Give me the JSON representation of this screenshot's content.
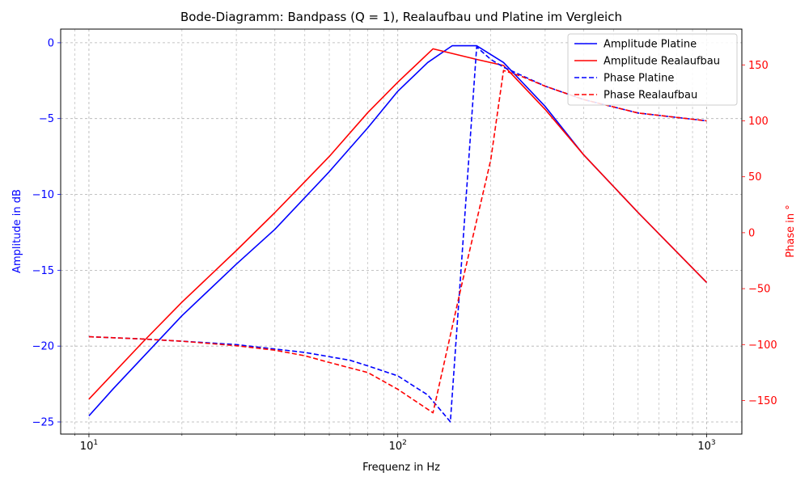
{
  "chart_data": {
    "type": "line",
    "title": "Bode-Diagramm: Bandpass (Q = 1), Realaufbau und Platine im Vergleich",
    "xlabel": "Frequenz in Hz",
    "ylabel_left": "Amplitude in dB",
    "ylabel_right": "Phase in °",
    "x_scale": "log",
    "xlim": [
      8.1,
      1300
    ],
    "ylim_left": [
      -25.8,
      0.9
    ],
    "ylim_right": [
      -180,
      182
    ],
    "x_ticks": [
      10,
      100,
      1000
    ],
    "x_tick_labels": [
      {
        "base": "10",
        "exp": "1"
      },
      {
        "base": "10",
        "exp": "2"
      },
      {
        "base": "10",
        "exp": "3"
      }
    ],
    "y_left_ticks": [
      0,
      -5,
      -10,
      -15,
      -20,
      -25
    ],
    "y_left_tick_labels": [
      "0",
      "−5",
      "−10",
      "−15",
      "−20",
      "−25"
    ],
    "y_right_ticks": [
      150,
      100,
      50,
      0,
      -50,
      -100,
      -150
    ],
    "y_right_tick_labels": [
      "150",
      "100",
      "50",
      "0",
      "−50",
      "−100",
      "−150"
    ],
    "grid": true,
    "legend_position": "top-right",
    "colors": {
      "blue": "#0000ff",
      "red": "#ff0000",
      "axis_left": "#0000ff",
      "axis_right": "#ff0000"
    },
    "series": [
      {
        "name": "Amplitude Platine",
        "axis": "left",
        "style": "solid",
        "color": "#0000ff",
        "x": [
          10,
          12,
          15,
          20,
          30,
          40,
          60,
          80,
          100,
          125,
          150,
          180,
          220,
          300,
          400,
          600,
          1000
        ],
        "y": [
          -24.6,
          -22.8,
          -20.7,
          -18.0,
          -14.6,
          -12.3,
          -8.5,
          -5.6,
          -3.2,
          -1.3,
          -0.2,
          -0.2,
          -1.3,
          -4.2,
          -7.4,
          -11.2,
          -15.8
        ]
      },
      {
        "name": "Amplitude Realaufbau",
        "axis": "left",
        "style": "solid",
        "color": "#ff0000",
        "x": [
          10,
          15,
          20,
          30,
          40,
          60,
          80,
          100,
          130,
          180,
          220,
          300,
          400,
          600,
          1000
        ],
        "y": [
          -23.5,
          -19.7,
          -17.1,
          -13.7,
          -11.2,
          -7.5,
          -4.6,
          -2.6,
          -0.4,
          -1.1,
          -1.5,
          -4.4,
          -7.4,
          -11.2,
          -15.8
        ]
      },
      {
        "name": "Phase Platine",
        "axis": "right",
        "style": "dashed",
        "color": "#0000ff",
        "x": [
          10,
          15,
          20,
          30,
          40,
          50,
          70,
          80,
          100,
          125,
          148,
          180,
          200,
          220,
          300,
          400,
          600,
          1000
        ],
        "y": [
          -93,
          -95,
          -97,
          -100,
          -104,
          -107,
          -114,
          -119,
          -128,
          -145,
          -169,
          166,
          155,
          148,
          131,
          119,
          107,
          100
        ]
      },
      {
        "name": "Phase Realaufbau",
        "axis": "right",
        "style": "dashed",
        "color": "#ff0000",
        "x": [
          10,
          15,
          20,
          30,
          40,
          50,
          60,
          80,
          100,
          130,
          160,
          200,
          220,
          250,
          300,
          400,
          600,
          1000
        ],
        "y": [
          -93,
          -95,
          -97,
          -101,
          -105,
          -110,
          -116,
          -125,
          -140,
          -161,
          -50,
          65,
          145,
          140,
          131,
          119,
          107,
          100
        ]
      }
    ]
  }
}
